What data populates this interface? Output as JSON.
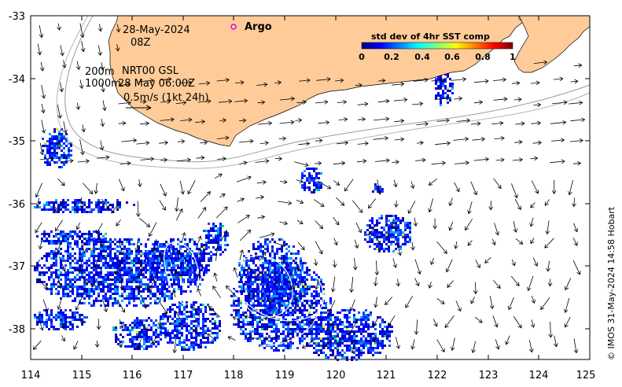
{
  "map": {
    "date": "28-May-2024",
    "hour": "08Z",
    "argo_label": "Argo",
    "depth_line_1": "200m",
    "depth_line_2": "1000m",
    "product_line": "NRT00 GSL",
    "time_line": "28 May 06:00Z",
    "scale_label": "0.5m/s (1kt 24h)",
    "credit": "© IMOS 31-May-2024 14:58 Hobart",
    "land_color": "#FFCC99",
    "colorbar": {
      "title": "std dev of 4hr SST comp",
      "ticks": [
        "0",
        "0.2",
        "0.4",
        "0.6",
        "0.8",
        "1"
      ]
    },
    "axes": {
      "lon_ticks": [
        "114",
        "115",
        "116",
        "117",
        "118",
        "119",
        "120",
        "121",
        "122",
        "123",
        "124",
        "125"
      ],
      "lat_ticks": [
        "-33",
        "-34",
        "-35",
        "-36",
        "-37",
        "-38"
      ]
    }
  }
}
